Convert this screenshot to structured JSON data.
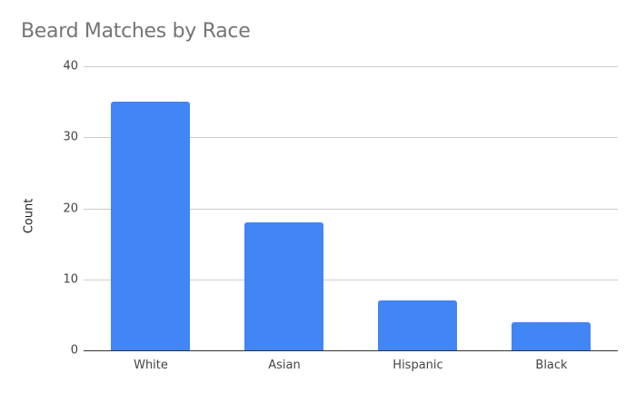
{
  "chart_data": {
    "type": "bar",
    "title": "Beard Matches by Race",
    "xlabel": "",
    "ylabel": "Count",
    "categories": [
      "White",
      "Asian",
      "Hispanic",
      "Black"
    ],
    "values": [
      35,
      18,
      7,
      4
    ],
    "ylim": [
      0,
      40
    ],
    "yticks": [
      0,
      10,
      20,
      30,
      40
    ],
    "grid": true,
    "legend": "none",
    "bar_color": "#4285f4"
  }
}
